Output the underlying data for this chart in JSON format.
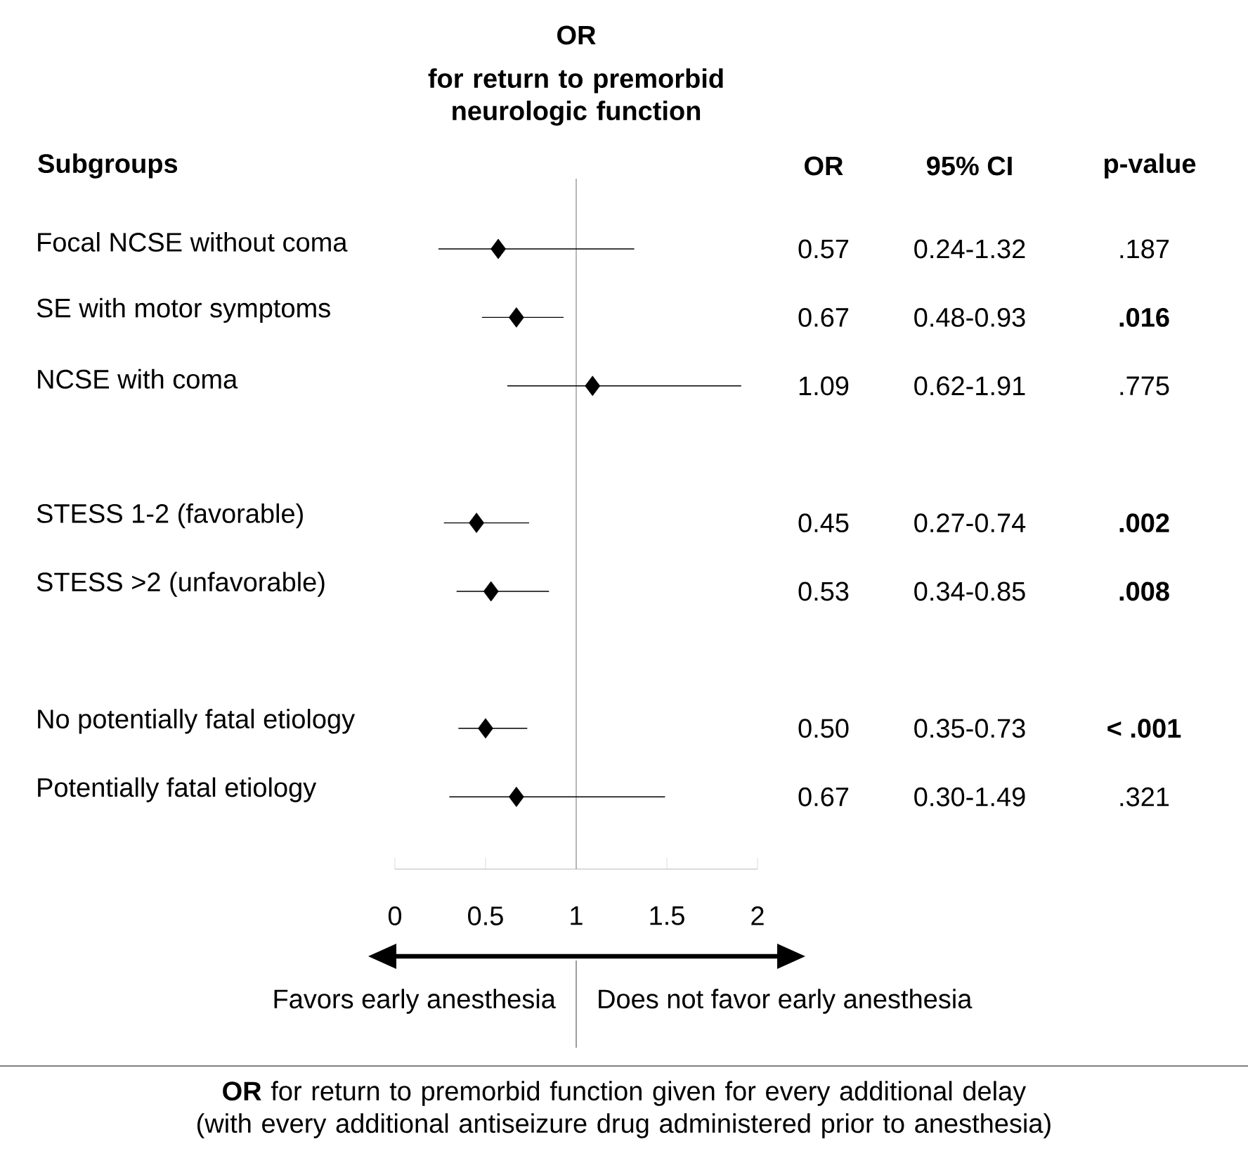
{
  "chart_data": {
    "type": "scatter",
    "orientation": "horizontal",
    "title": "OR",
    "subtitle": "for return to premorbid neurologic function",
    "categories": [
      "Focal NCSE without coma",
      "SE with motor symptoms",
      "NCSE with coma",
      null,
      "STESS 1-2 (favorable)",
      "STESS >2 (unfavorable)",
      null,
      "No potentially fatal etiology",
      "Potentially fatal etiology"
    ],
    "values": [
      0.57,
      0.67,
      1.09,
      null,
      0.45,
      0.53,
      null,
      0.5,
      0.67
    ],
    "errors": [
      [
        0.24,
        1.32
      ],
      [
        0.48,
        0.93
      ],
      [
        0.62,
        1.91
      ],
      null,
      [
        0.27,
        0.74
      ],
      [
        0.34,
        0.85
      ],
      null,
      [
        0.35,
        0.73
      ],
      [
        0.3,
        1.49
      ]
    ],
    "value_labels": [
      "0.57",
      "0.67",
      "1.09",
      null,
      "0.45",
      "0.53",
      null,
      "0.50",
      "0.67"
    ],
    "color": "#000000",
    "marker": "diamond",
    "xlim": [
      0,
      2
    ],
    "xticks": [
      0,
      0.5,
      1,
      1.5,
      2
    ],
    "ref_lines": [
      {
        "axis": "x",
        "value": 1,
        "color": "#a6a6a6"
      }
    ],
    "annotations": [
      "Subgroups",
      "OR",
      "95% CI",
      "p-value",
      "0.24-1.32",
      "0.48-0.93",
      "0.62-1.91",
      "0.27-0.74",
      "0.34-0.85",
      "0.35-0.73",
      "0.30-1.49",
      ".187",
      "**.016**",
      ".775",
      "**.002**",
      "**.008**",
      "**< .001**",
      ".321",
      "Favors early anesthesia",
      "Does not favor early anesthesia",
      "**OR** for return to premorbid function given for every additional delay (with every additional antiseizure drug administered prior to anesthesia)"
    ]
  }
}
